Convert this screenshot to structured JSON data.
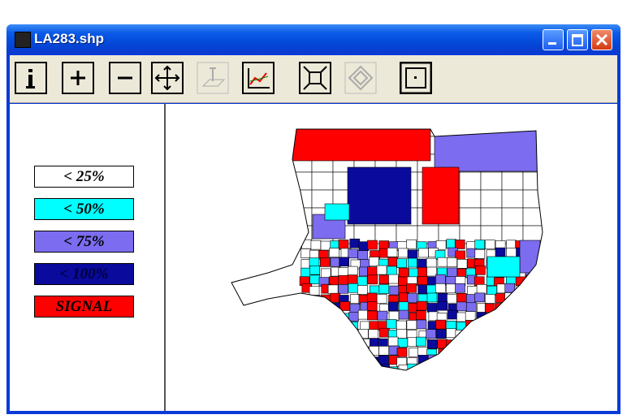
{
  "window": {
    "title": "LA283.shp"
  },
  "legend": [
    {
      "label": "< 25%",
      "color": "#ffffff"
    },
    {
      "label": "< 50%",
      "color": "#00ffff"
    },
    {
      "label": "< 75%",
      "color": "#7b6cf0"
    },
    {
      "label": "< 100%",
      "color": "#0a0a9c"
    },
    {
      "label": "SIGNAL",
      "color": "#ff0000"
    }
  ]
}
